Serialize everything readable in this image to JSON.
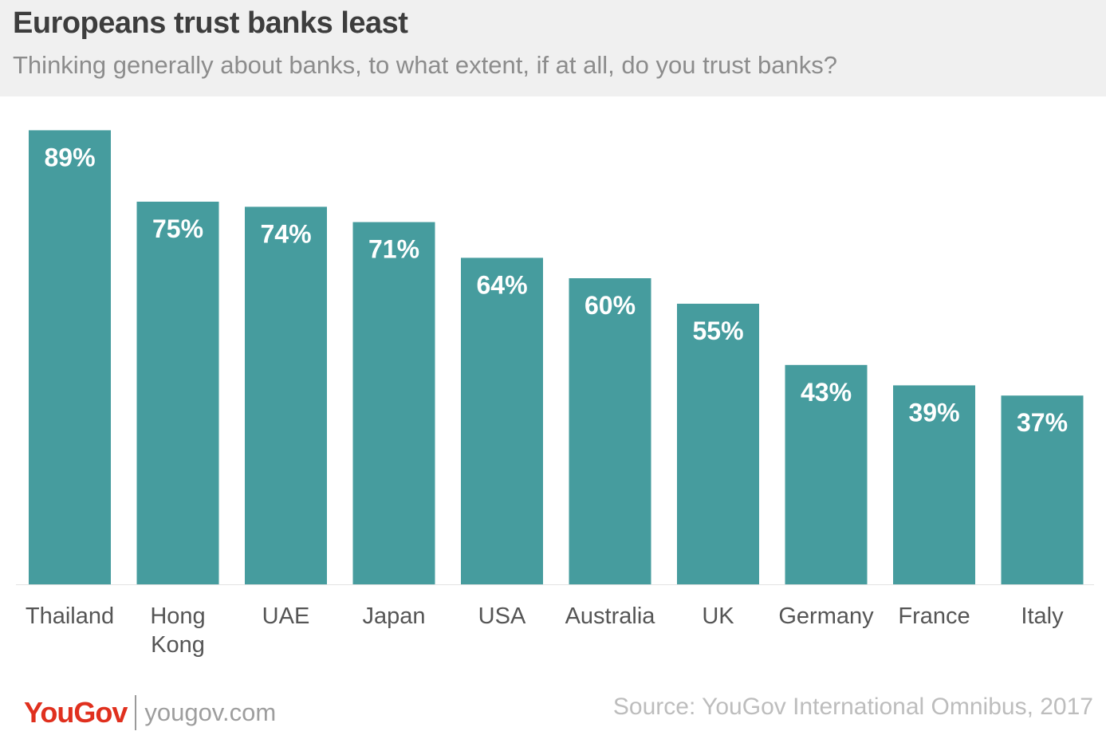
{
  "title": "Europeans trust banks least",
  "subtitle": "Thinking generally about banks, to what extent, if at all, do you trust banks?",
  "footer": {
    "logo_part1": "YouGov",
    "site": "yougov.com",
    "source": "Source: YouGov International Omnibus, 2017"
  },
  "colors": {
    "bar": "#469c9e",
    "label": "#ffffff",
    "axis_text": "#555555",
    "logo": "#e0301e"
  },
  "chart_data": {
    "type": "bar",
    "categories": [
      "Thailand",
      "Hong Kong",
      "UAE",
      "Japan",
      "USA",
      "Australia",
      "UK",
      "Germany",
      "France",
      "Italy"
    ],
    "values": [
      89,
      75,
      74,
      71,
      64,
      60,
      55,
      43,
      39,
      37
    ],
    "data_labels": [
      "89%",
      "75%",
      "74%",
      "71%",
      "64%",
      "60%",
      "55%",
      "43%",
      "39%",
      "37%"
    ],
    "title": "Europeans trust banks least",
    "xlabel": "",
    "ylabel": "",
    "ylim": [
      0,
      100
    ],
    "grid": false,
    "legend": "none"
  }
}
